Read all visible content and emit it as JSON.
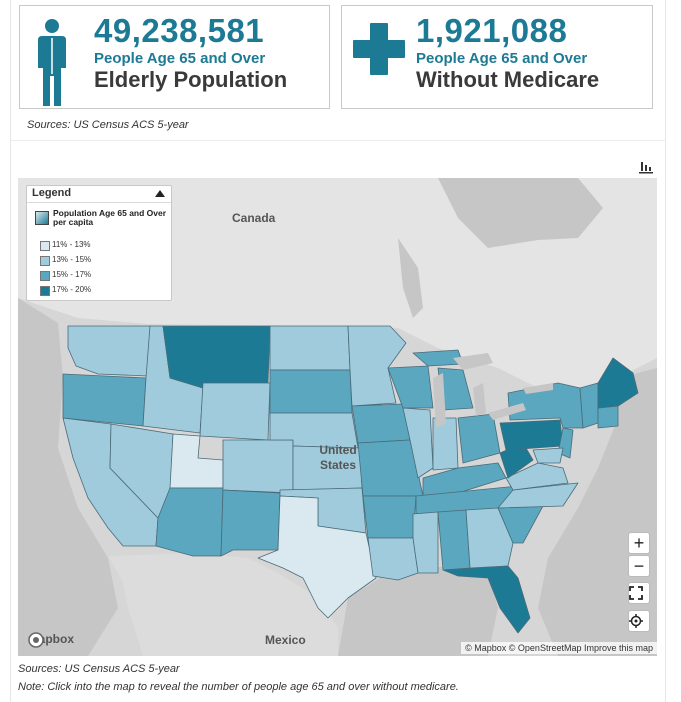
{
  "stats": [
    {
      "number": "49,238,581",
      "sub": "People Age 65 and Over",
      "label": "Elderly Population",
      "icon": "person-icon"
    },
    {
      "number": "1,921,088",
      "sub": "People Age 65 and Over",
      "label": "Without Medicare",
      "icon": "medical-cross-icon"
    }
  ],
  "sources_top": "Sources: US Census ACS 5-year",
  "map": {
    "legend": {
      "title": "Legend",
      "layer": "Population Age 65 and Over per capita",
      "items": [
        {
          "label": "11% - 13%",
          "color": "#d9e9ef"
        },
        {
          "label": "13% - 15%",
          "color": "#9fcbdc"
        },
        {
          "label": "15% - 17%",
          "color": "#5ba7bf"
        },
        {
          "label": "17% - 20%",
          "color": "#1d7a94"
        }
      ]
    },
    "labels": {
      "canada": "Canada",
      "us": "United\nStates",
      "mexico": "Mexico"
    },
    "brand": "mapbox",
    "attribution": "© Mapbox © OpenStreetMap  Improve this map",
    "controls": {
      "zoom_in": "+",
      "zoom_out": "−"
    }
  },
  "sources_bottom": "Sources: US Census ACS 5-year",
  "note": "Note: Click into the map to reveal the number of people age 65 and over without medicare."
}
